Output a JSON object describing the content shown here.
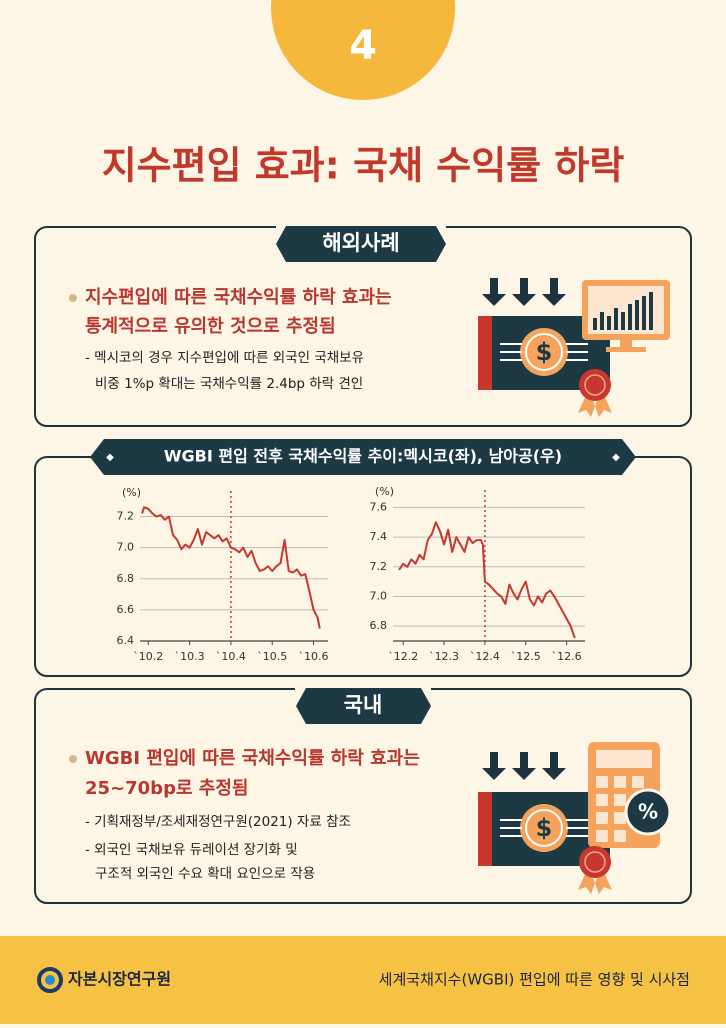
{
  "badge": "4",
  "title": "지수편입 효과: 국채 수익률 하락",
  "overseas": {
    "label": "해외사례",
    "bullet_lines": [
      "지수편입에 따른 국채수익률 하락 효과는",
      "통계적으로 유의한 것으로 추정됨"
    ],
    "note_lines": [
      "- 멕시코의 경우 지수편입에 따른 외국인 국채보유",
      "비중 1%p 확대는 국채수익률 2.4bp 하락 견인"
    ]
  },
  "chart_panel_title": "WGBI 편입 전후 국채수익률 추이:멕시코(좌), 남아공(우)",
  "chart_data": [
    {
      "type": "line",
      "y_label": "(%)",
      "x": [
        1.85,
        1.9,
        2.0,
        2.1,
        2.2,
        2.3,
        2.4,
        2.5,
        2.6,
        2.7,
        2.8,
        2.9,
        3.0,
        3.1,
        3.2,
        3.3,
        3.4,
        3.5,
        3.6,
        3.7,
        3.8,
        3.9,
        4.0,
        4.1,
        4.2,
        4.3,
        4.4,
        4.5,
        4.6,
        4.7,
        4.8,
        4.9,
        5.0,
        5.1,
        5.2,
        5.3,
        5.4,
        5.5,
        5.6,
        5.7,
        5.8,
        5.9,
        6.0,
        6.1,
        6.15
      ],
      "series": [
        {
          "color": "#c8372d",
          "values": [
            7.22,
            7.26,
            7.25,
            7.22,
            7.2,
            7.21,
            7.18,
            7.2,
            7.08,
            7.05,
            6.99,
            7.02,
            7.0,
            7.05,
            7.12,
            7.02,
            7.1,
            7.08,
            7.06,
            7.08,
            7.04,
            7.06,
            7.0,
            6.99,
            6.97,
            7.0,
            6.94,
            6.98,
            6.9,
            6.85,
            6.86,
            6.88,
            6.85,
            6.88,
            6.9,
            7.05,
            6.85,
            6.84,
            6.86,
            6.82,
            6.83,
            6.72,
            6.6,
            6.55,
            6.48
          ]
        }
      ],
      "xlim": [
        1.8,
        6.35
      ],
      "ylim": [
        6.4,
        7.3
      ],
      "xticks": [
        {
          "value": 2,
          "label": "`10.2"
        },
        {
          "value": 3,
          "label": "`10.3"
        },
        {
          "value": 4,
          "label": "`10.4"
        },
        {
          "value": 5,
          "label": "`10.5"
        },
        {
          "value": 6,
          "label": "`10.6"
        }
      ],
      "yticks": [
        6.4,
        6.6,
        6.8,
        {
          "value": 7,
          "label": "7.0"
        },
        7.2
      ],
      "grid": true,
      "event_x": 4
    },
    {
      "type": "line",
      "y_label": "(%)",
      "x": [
        1.9,
        2.0,
        2.1,
        2.2,
        2.3,
        2.4,
        2.5,
        2.6,
        2.7,
        2.8,
        2.9,
        3.0,
        3.1,
        3.2,
        3.3,
        3.4,
        3.5,
        3.6,
        3.7,
        3.8,
        3.9,
        3.95,
        4.0,
        4.1,
        4.2,
        4.3,
        4.4,
        4.5,
        4.6,
        4.7,
        4.8,
        4.9,
        5.0,
        5.1,
        5.2,
        5.3,
        5.4,
        5.5,
        5.6,
        5.7,
        5.8,
        5.9,
        6.0,
        6.1,
        6.2
      ],
      "series": [
        {
          "color": "#c8372d",
          "values": [
            7.18,
            7.22,
            7.2,
            7.25,
            7.22,
            7.28,
            7.25,
            7.38,
            7.42,
            7.5,
            7.44,
            7.35,
            7.45,
            7.3,
            7.4,
            7.35,
            7.3,
            7.4,
            7.36,
            7.38,
            7.38,
            7.35,
            7.1,
            7.08,
            7.05,
            7.02,
            7.0,
            6.95,
            7.08,
            7.02,
            6.98,
            7.05,
            7.1,
            6.98,
            6.94,
            7.0,
            6.96,
            7.02,
            7.04,
            7.0,
            6.95,
            6.9,
            6.85,
            6.8,
            6.72
          ]
        }
      ],
      "xlim": [
        1.75,
        6.45
      ],
      "ylim": [
        6.7,
        7.65
      ],
      "xticks": [
        {
          "value": 2,
          "label": "`12.2"
        },
        {
          "value": 3,
          "label": "`12.3"
        },
        {
          "value": 4,
          "label": "`12.4"
        },
        {
          "value": 5,
          "label": "`12.5"
        },
        {
          "value": 6,
          "label": "`12.6"
        }
      ],
      "yticks": [
        6.8,
        {
          "value": 7,
          "label": "7.0"
        },
        7.2,
        7.4,
        7.6
      ],
      "grid": true,
      "event_x": 4
    }
  ],
  "domestic": {
    "label": "국내",
    "bullet_lines": [
      "WGBI 편입에 따른 국채수익률 하락 효과는",
      "25~70bp로 추정됨"
    ],
    "note_lines": [
      "- 기획재정부/조세재정연구원(2021) 자료 참조",
      "- 외국인 국채보유 듀레이션 장기화 및",
      "구조적 외국인 수요 확대 요인으로 작용"
    ]
  },
  "icons": {
    "dollar": "$",
    "percent": "%"
  },
  "footer": {
    "org": "자본시장연구원",
    "caption": "세계국채지수(WGBI) 편입에 따른 영향 및 시사점"
  }
}
